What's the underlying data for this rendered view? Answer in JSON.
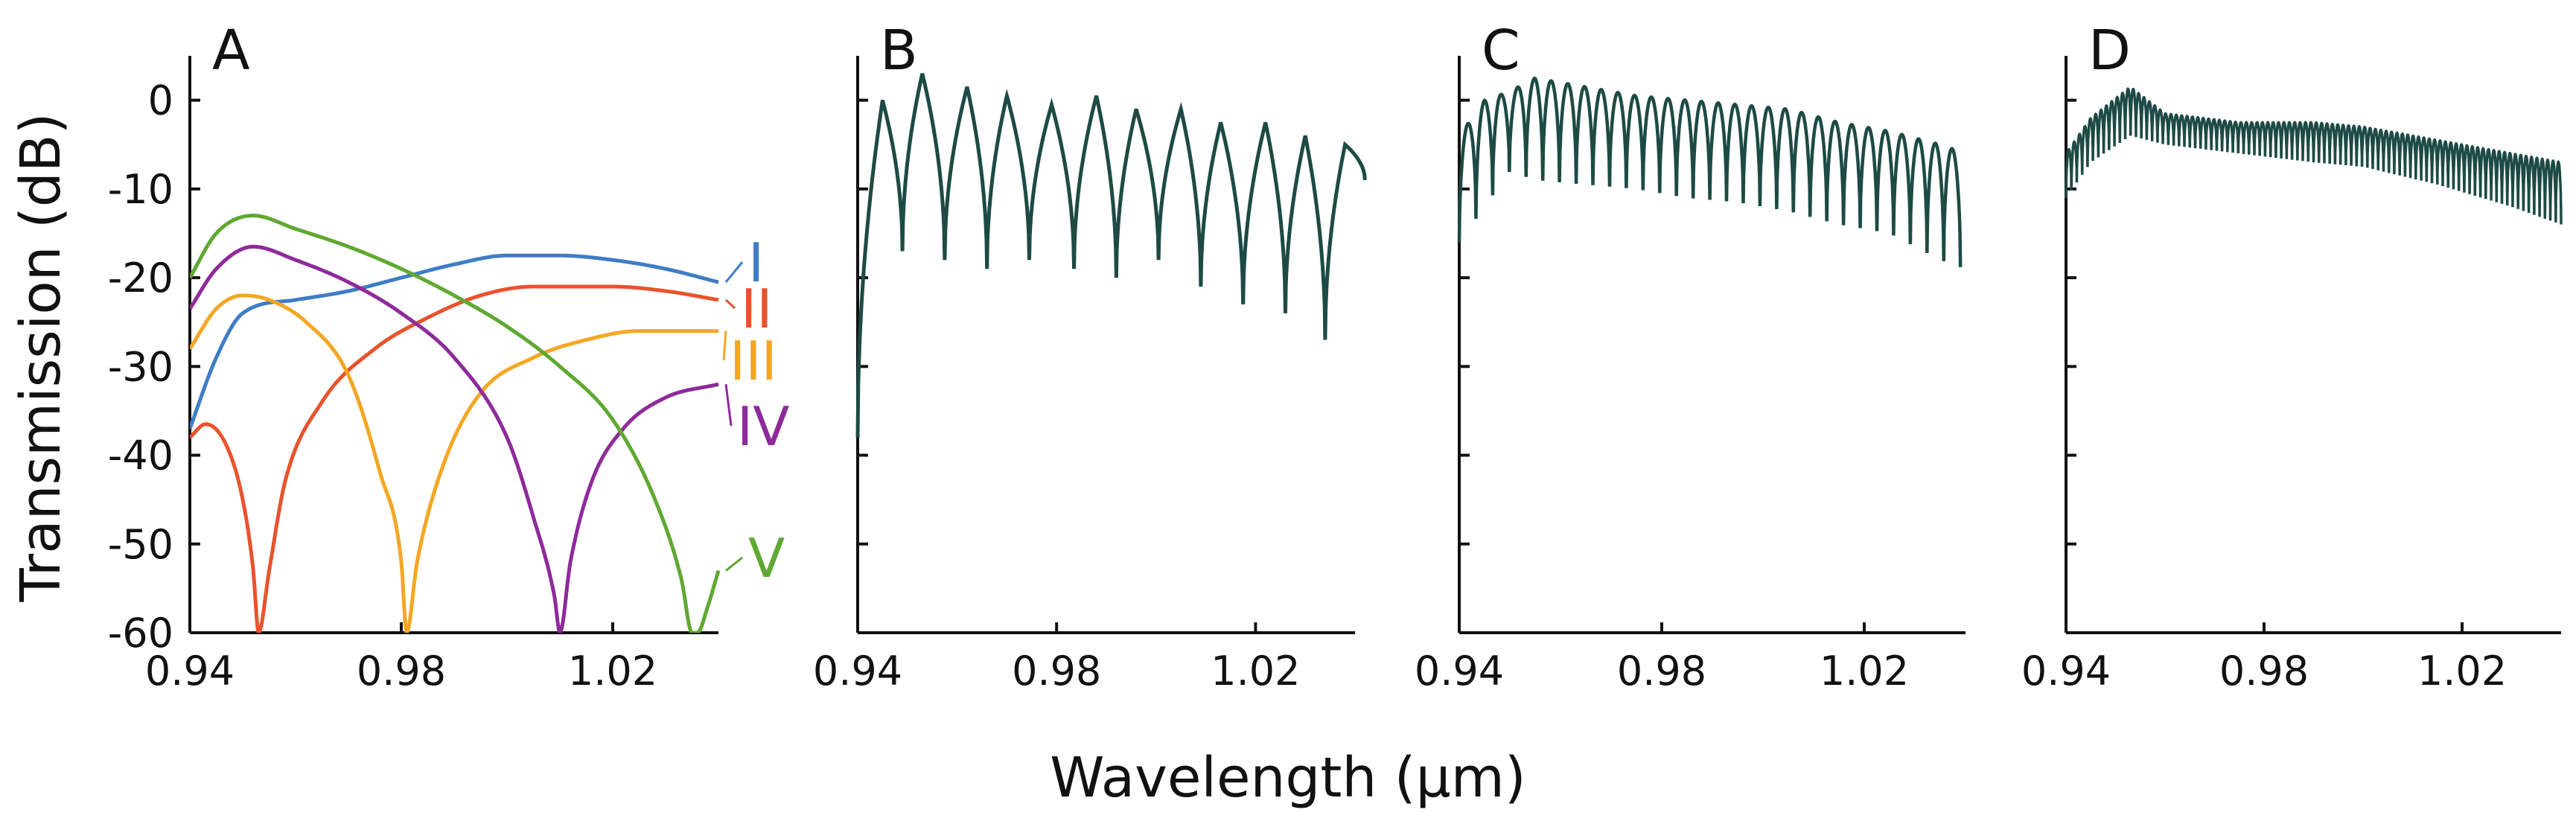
{
  "figure": {
    "xlabel": "Wavelength (μm)",
    "ylabel": "Transmission (dB)",
    "colors": {
      "axis": "#111111",
      "osc_curve": "#1d4a45"
    }
  },
  "chart_data": [
    {
      "panel": "A",
      "type": "line",
      "xlim": [
        0.94,
        1.04
      ],
      "ylim": [
        -60,
        5
      ],
      "xticks": [
        "0.94",
        "0.98",
        "1.02"
      ],
      "yticks": [
        "0",
        "-10",
        "-20",
        "-30",
        "-40",
        "-50",
        "-60"
      ],
      "series": [
        {
          "name": "I",
          "color": "#3f7cc6",
          "x": [
            0.94,
            0.945,
            0.95,
            0.96,
            0.97,
            0.98,
            0.99,
            1.0,
            1.01,
            1.02,
            1.03,
            1.04
          ],
          "y": [
            -37,
            -29,
            -24,
            -22.5,
            -21.5,
            -20,
            -18.5,
            -17.5,
            -17.5,
            -18,
            -19,
            -20.5
          ]
        },
        {
          "name": "II",
          "color": "#e8532c",
          "x": [
            0.94,
            0.943,
            0.947,
            0.95,
            0.952,
            0.953,
            0.955,
            0.958,
            0.965,
            0.975,
            0.985,
            0.995,
            1.005,
            1.02,
            1.03,
            1.04
          ],
          "y": [
            -38,
            -36.5,
            -39,
            -45,
            -53,
            -60,
            -53,
            -43,
            -34,
            -28,
            -24.5,
            -22,
            -21,
            -21,
            -21.5,
            -22.5
          ]
        },
        {
          "name": "III",
          "color": "#f5a623",
          "x": [
            0.94,
            0.945,
            0.95,
            0.955,
            0.962,
            0.97,
            0.976,
            0.98,
            0.981,
            0.983,
            0.988,
            0.995,
            1.005,
            1.015,
            1.025,
            1.04
          ],
          "y": [
            -28,
            -23.5,
            -22,
            -22.5,
            -25,
            -31,
            -42,
            -52,
            -60,
            -52,
            -41,
            -33,
            -29,
            -27,
            -26,
            -26
          ]
        },
        {
          "name": "IV",
          "color": "#8e2a9a",
          "x": [
            0.94,
            0.945,
            0.952,
            0.96,
            0.97,
            0.98,
            0.99,
            1.0,
            1.005,
            1.009,
            1.01,
            1.012,
            1.016,
            1.022,
            1.03,
            1.04
          ],
          "y": [
            -23.5,
            -19,
            -16.5,
            -18,
            -20.5,
            -24,
            -29,
            -38,
            -47,
            -56,
            -60,
            -52,
            -43,
            -37,
            -33.5,
            -32
          ]
        },
        {
          "name": "V",
          "color": "#5fa832",
          "x": [
            0.94,
            0.945,
            0.952,
            0.96,
            0.97,
            0.98,
            0.99,
            1.0,
            1.01,
            1.02,
            1.028,
            1.033,
            1.035,
            1.036,
            1.038,
            1.04
          ],
          "y": [
            -20,
            -15,
            -13,
            -14.5,
            -16.5,
            -19,
            -22,
            -25.5,
            -30,
            -36,
            -45,
            -54,
            -60,
            -60,
            -57,
            -53
          ]
        }
      ]
    },
    {
      "panel": "B",
      "type": "line",
      "description": "12 interference fringes",
      "xlim": [
        0.94,
        1.04
      ],
      "ylim": [
        -60,
        5
      ],
      "xticks": [
        "0.94",
        "0.98",
        "1.02"
      ],
      "peaks_x": [
        0.945,
        0.953,
        0.962,
        0.97,
        0.979,
        0.988,
        0.996,
        1.005,
        1.013,
        1.022,
        1.03,
        1.038
      ],
      "peaks_y": [
        0,
        3,
        1.5,
        0.5,
        -0.5,
        0.5,
        -1,
        -1,
        -2.5,
        -2.5,
        -4,
        -5
      ],
      "minima_y": [
        -38,
        -17,
        -18,
        -19,
        -18,
        -19,
        -20,
        -18,
        -21,
        -23,
        -24,
        -27
      ]
    },
    {
      "panel": "C",
      "type": "line",
      "description": "~30 fast oscillations with decreasing envelope",
      "xlim": [
        0.94,
        1.04
      ],
      "ylim": [
        -60,
        5
      ],
      "xticks": [
        "0.94",
        "0.98",
        "1.02"
      ],
      "env_x": [
        0.94,
        0.945,
        0.95,
        0.955,
        0.965,
        0.975,
        0.985,
        0.995,
        1.005,
        1.015,
        1.025,
        1.035,
        1.04
      ],
      "upper_y": [
        -4,
        0,
        1,
        2.5,
        1.5,
        0.5,
        0,
        -0.5,
        -1,
        -2.5,
        -3.5,
        -5,
        -6
      ],
      "lower_y": [
        -16,
        -12,
        -8,
        -9,
        -9.5,
        -10,
        -11,
        -11.5,
        -12.5,
        -14,
        -15,
        -18,
        -19
      ]
    },
    {
      "panel": "D",
      "type": "line",
      "description": "very dense oscillations (~90 fringes)",
      "xlim": [
        0.94,
        1.04
      ],
      "ylim": [
        -60,
        5
      ],
      "xticks": [
        "0.94",
        "0.98",
        "1.02"
      ],
      "env_x": [
        0.94,
        0.945,
        0.953,
        0.96,
        0.975,
        0.99,
        1.0,
        1.015,
        1.03,
        1.04
      ],
      "upper_y": [
        -6,
        -2,
        1.5,
        -1.5,
        -2.5,
        -2.5,
        -3,
        -4.5,
        -6,
        -7
      ],
      "lower_y": [
        -11,
        -7,
        -4,
        -5,
        -6,
        -7,
        -7.5,
        -9.5,
        -12,
        -14
      ]
    }
  ]
}
